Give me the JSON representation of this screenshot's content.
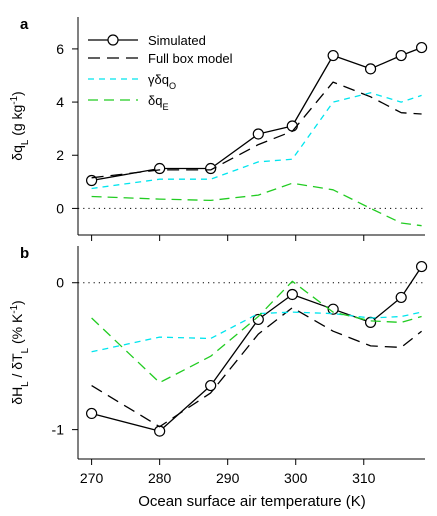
{
  "figure": {
    "xlabel": "Ocean surface air temperature (K)"
  },
  "chart_data": [
    {
      "panel": "a",
      "type": "line",
      "panel_label": "a",
      "ylabel_parts": [
        "δq",
        "L",
        " (g kg",
        "-1",
        ")"
      ],
      "xlim": [
        268,
        319
      ],
      "ylim": [
        -1,
        7.2
      ],
      "xticks": [
        270,
        280,
        290,
        300,
        310
      ],
      "yticks": [
        0,
        2,
        4,
        6
      ],
      "zero_line": true,
      "legend_position": "top-left",
      "series": [
        {
          "key": "simulated",
          "legend_parts": [
            "Simulated"
          ],
          "color": "#000000",
          "dash": "solid",
          "markers": true,
          "x": [
            270,
            280,
            287.5,
            294.5,
            299.5,
            305.5,
            311,
            315.5,
            318.5
          ],
          "y": [
            1.05,
            1.5,
            1.5,
            2.8,
            3.1,
            5.75,
            5.25,
            5.75,
            6.05
          ]
        },
        {
          "key": "full_box_model",
          "legend_parts": [
            "Full box model"
          ],
          "color": "#000000",
          "dash": "long",
          "markers": false,
          "x": [
            270,
            280,
            287.5,
            294.5,
            299.5,
            305.5,
            311,
            315.5,
            318.5
          ],
          "y": [
            1.15,
            1.45,
            1.45,
            2.4,
            2.9,
            4.75,
            4.2,
            3.6,
            3.55
          ]
        },
        {
          "key": "gamma_dqo",
          "legend_parts": [
            "γδq",
            "O"
          ],
          "color": "#00e5ee",
          "dash": "short",
          "markers": false,
          "x": [
            270,
            280,
            287.5,
            294.5,
            299.5,
            305.5,
            311,
            315.5,
            318.5
          ],
          "y": [
            0.75,
            1.1,
            1.1,
            1.75,
            1.85,
            4.0,
            4.35,
            4.0,
            4.25
          ]
        },
        {
          "key": "dqe",
          "legend_parts": [
            "δq",
            "E"
          ],
          "color": "#22cc22",
          "dash": "medium",
          "markers": false,
          "x": [
            270,
            280,
            287.5,
            294.5,
            299.5,
            305.5,
            311,
            315.5,
            318.5
          ],
          "y": [
            0.45,
            0.35,
            0.3,
            0.5,
            0.95,
            0.7,
            0.0,
            -0.55,
            -0.65
          ]
        }
      ]
    },
    {
      "panel": "b",
      "type": "line",
      "panel_label": "b",
      "ylabel_parts": [
        "δH",
        "L",
        " / δT",
        "L",
        " (% K",
        "-1",
        ")"
      ],
      "xlim": [
        268,
        319
      ],
      "ylim": [
        -1.2,
        0.25
      ],
      "xticks": [
        270,
        280,
        290,
        300,
        310
      ],
      "yticks": [
        -1,
        0
      ],
      "ytick_labels": [
        "-1",
        "0"
      ],
      "zero_line": true,
      "series": [
        {
          "key": "simulated",
          "color": "#000000",
          "dash": "solid",
          "markers": true,
          "x": [
            270,
            280,
            287.5,
            294.5,
            299.5,
            305.5,
            311,
            315.5,
            318.5
          ],
          "y": [
            -0.89,
            -1.01,
            -0.7,
            -0.25,
            -0.08,
            -0.18,
            -0.27,
            -0.1,
            0.11
          ]
        },
        {
          "key": "full_box_model",
          "color": "#000000",
          "dash": "long",
          "markers": false,
          "x": [
            270,
            280,
            287.5,
            294.5,
            299.5,
            305.5,
            311,
            315.5,
            318.5
          ],
          "y": [
            -0.7,
            -0.98,
            -0.75,
            -0.35,
            -0.17,
            -0.33,
            -0.43,
            -0.44,
            -0.33
          ]
        },
        {
          "key": "gamma_dqo",
          "color": "#00e5ee",
          "dash": "short",
          "markers": false,
          "x": [
            270,
            280,
            287.5,
            294.5,
            299.5,
            305.5,
            311,
            315.5,
            318.5
          ],
          "y": [
            -0.47,
            -0.37,
            -0.38,
            -0.21,
            -0.2,
            -0.21,
            -0.24,
            -0.23,
            -0.2
          ]
        },
        {
          "key": "dqe",
          "color": "#22cc22",
          "dash": "medium",
          "markers": false,
          "x": [
            270,
            280,
            287.5,
            294.5,
            299.5,
            305.5,
            311,
            315.5,
            318.5
          ],
          "y": [
            -0.24,
            -0.68,
            -0.5,
            -0.23,
            0.01,
            -0.2,
            -0.26,
            -0.27,
            -0.23
          ]
        }
      ]
    }
  ]
}
